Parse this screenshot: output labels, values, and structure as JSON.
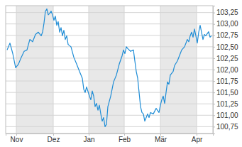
{
  "chart_data": {
    "type": "line",
    "color": "#1f8dd6",
    "grid": true,
    "x": [
      1,
      3,
      5,
      7,
      9,
      11,
      13,
      15,
      17,
      19,
      21,
      23,
      25,
      26,
      27,
      28,
      29,
      30,
      31,
      32,
      33,
      34,
      35,
      36,
      37,
      38,
      39,
      40,
      41,
      42,
      43,
      44,
      46,
      48,
      50,
      52,
      54,
      55,
      56,
      57,
      59,
      60,
      61,
      62,
      63,
      64,
      65,
      66,
      67,
      68,
      69,
      70,
      71,
      72,
      74,
      76,
      78,
      80,
      82,
      83,
      84,
      85,
      86,
      88,
      90,
      91,
      92,
      93,
      94,
      95,
      96,
      97,
      98,
      99,
      100,
      101,
      102,
      104,
      106,
      108,
      109,
      110,
      111,
      112,
      113,
      114,
      115,
      116,
      118,
      119,
      121,
      123,
      124,
      126,
      127,
      128,
      129,
      130,
      131,
      132,
      133,
      134,
      135,
      136,
      137,
      138,
      139,
      140,
      141,
      143,
      144,
      145
    ],
    "values": [
      102.43,
      102.58,
      102.35,
      102.04,
      102.12,
      102.27,
      102.4,
      102.43,
      102.66,
      102.61,
      102.77,
      102.82,
      102.74,
      102.82,
      103.02,
      103.28,
      103.33,
      103.2,
      103.23,
      103.28,
      103.2,
      103.08,
      103.17,
      102.97,
      103.05,
      102.82,
      102.92,
      102.74,
      102.86,
      102.66,
      102.74,
      102.55,
      102.5,
      102.27,
      102.12,
      101.96,
      101.81,
      101.57,
      101.5,
      101.62,
      101.42,
      101.34,
      101.53,
      101.42,
      101.19,
      101.26,
      101.11,
      101.22,
      101.03,
      100.87,
      100.95,
      100.75,
      100.8,
      101.19,
      101.42,
      101.73,
      101.88,
      102.12,
      102.3,
      102.43,
      102.35,
      102.5,
      102.46,
      102.4,
      102.43,
      102.19,
      101.96,
      101.81,
      101.5,
      101.19,
      101.06,
      101.03,
      100.87,
      100.95,
      101.03,
      100.95,
      101.06,
      101.03,
      101.15,
      101.06,
      101.22,
      101.34,
      101.42,
      101.26,
      101.5,
      101.73,
      101.68,
      101.88,
      101.96,
      102.09,
      102.19,
      102.35,
      102.43,
      102.5,
      102.58,
      102.66,
      102.61,
      102.74,
      102.82,
      102.71,
      102.89,
      102.74,
      102.58,
      102.82,
      102.97,
      102.82,
      102.66,
      102.77,
      102.74,
      102.83,
      102.71,
      102.74
    ],
    "xlim": [
      0,
      146
    ],
    "xticks": [
      {
        "value": 7.5,
        "label": "Nov"
      },
      {
        "value": 33.5,
        "label": "Dez"
      },
      {
        "value": 58.5,
        "label": "Jan"
      },
      {
        "value": 83.5,
        "label": "Feb"
      },
      {
        "value": 109,
        "label": "Mär"
      },
      {
        "value": 134.5,
        "label": "Apr"
      }
    ],
    "ylim": [
      100.6,
      103.4
    ],
    "yticks": [
      {
        "value": 100.75,
        "label": "100,75"
      },
      {
        "value": 101,
        "label": "101,00"
      },
      {
        "value": 101.25,
        "label": "101,25"
      },
      {
        "value": 101.5,
        "label": "101,50"
      },
      {
        "value": 101.75,
        "label": "101,75"
      },
      {
        "value": 102,
        "label": "102,00"
      },
      {
        "value": 102.25,
        "label": "102,25"
      },
      {
        "value": 102.5,
        "label": "102,50"
      },
      {
        "value": 102.75,
        "label": "102,75"
      },
      {
        "value": 103,
        "label": "103,00"
      },
      {
        "value": 103.25,
        "label": "103,25"
      }
    ]
  }
}
